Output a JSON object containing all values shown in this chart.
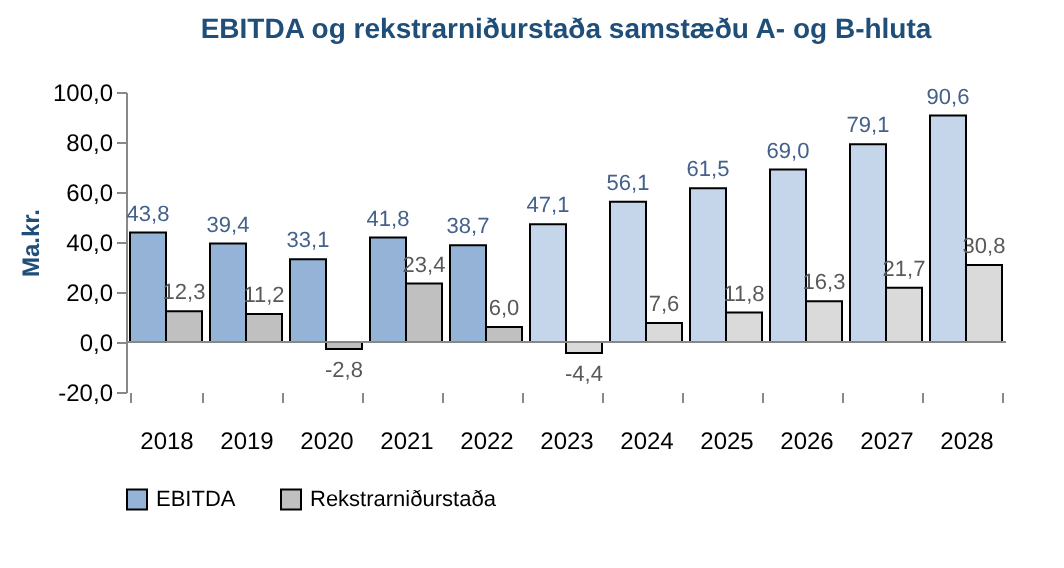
{
  "chart_data": {
    "type": "bar",
    "title": "EBITDA og rekstrarniðurstaða samstæðu A- og B-hluta",
    "ylabel": "Ma.kr.",
    "categories": [
      "2018",
      "2019",
      "2020",
      "2021",
      "2022",
      "2023",
      "2024",
      "2025",
      "2026",
      "2027",
      "2028"
    ],
    "series": [
      {
        "name": "EBITDA",
        "color": "#95b3d7",
        "colors": [
          "#95b3d7",
          "#95b3d7",
          "#95b3d7",
          "#95b3d7",
          "#95b3d7",
          "#c5d6ea",
          "#c5d6ea",
          "#c5d6ea",
          "#c5d6ea",
          "#c5d6ea",
          "#c5d6ea"
        ],
        "values": [
          43.8,
          39.4,
          33.1,
          41.8,
          38.7,
          47.1,
          56.1,
          61.5,
          69.0,
          79.1,
          90.6
        ],
        "value_labels": [
          "43,8",
          "39,4",
          "33,1",
          "41,8",
          "38,7",
          "47,1",
          "56,1",
          "61,5",
          "69,0",
          "79,1",
          "90,6"
        ]
      },
      {
        "name": "Rekstrarniðurstaða",
        "color": "#c0c0c0",
        "colors": [
          "#c0c0c0",
          "#c0c0c0",
          "#c0c0c0",
          "#c0c0c0",
          "#c0c0c0",
          "#dadada",
          "#dadada",
          "#dadada",
          "#dadada",
          "#dadada",
          "#dadada"
        ],
        "values": [
          12.3,
          11.2,
          -2.8,
          23.4,
          6.0,
          -4.4,
          7.6,
          11.8,
          16.3,
          21.7,
          30.8
        ],
        "value_labels": [
          "12,3",
          "11,2",
          "-2,8",
          "23,4",
          "6,0",
          "-4,4",
          "7,6",
          "11,8",
          "16,3",
          "21,7",
          "30,8"
        ]
      }
    ],
    "ylim": [
      -20,
      100
    ],
    "yticks": [
      {
        "value": -20,
        "label": "-20,0"
      },
      {
        "value": 0,
        "label": "0,0"
      },
      {
        "value": 20,
        "label": "20,0"
      },
      {
        "value": 40,
        "label": "40,0"
      },
      {
        "value": 60,
        "label": "60,0"
      },
      {
        "value": 80,
        "label": "80,0"
      },
      {
        "value": 100,
        "label": "100,0"
      }
    ],
    "legend": "bottom"
  }
}
